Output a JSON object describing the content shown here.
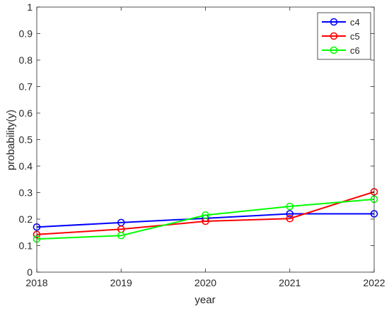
{
  "chart_data": {
    "type": "line",
    "xlabel": "year",
    "ylabel": "probability(y)",
    "x": [
      2018,
      2019,
      2020,
      2021,
      2022
    ],
    "xlim": [
      2018,
      2022
    ],
    "ylim": [
      0,
      1
    ],
    "xticks": [
      "2018",
      "2019",
      "2020",
      "2021",
      "2022"
    ],
    "yticks": [
      "0",
      "0.1",
      "0.2",
      "0.3",
      "0.4",
      "0.5",
      "0.6",
      "0.7",
      "0.8",
      "0.9",
      "1"
    ],
    "grid": false,
    "legend_position": "top-right",
    "marker": "circle",
    "series": [
      {
        "name": "c4",
        "color": "#0000ff",
        "values": [
          0.17,
          0.187,
          0.203,
          0.22,
          0.22
        ]
      },
      {
        "name": "c5",
        "color": "#ff0000",
        "values": [
          0.142,
          0.162,
          0.192,
          0.202,
          0.303
        ]
      },
      {
        "name": "c6",
        "color": "#00ff00",
        "values": [
          0.125,
          0.138,
          0.215,
          0.248,
          0.275
        ]
      }
    ]
  }
}
